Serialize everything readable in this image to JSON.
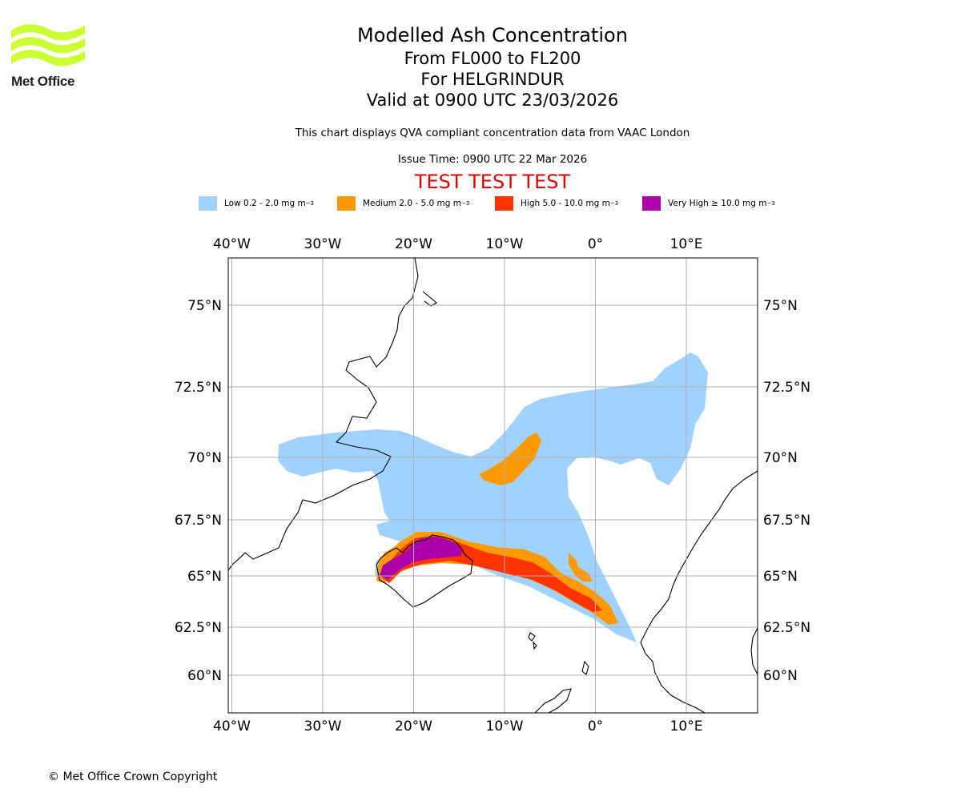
{
  "logo": {
    "text": "Met Office"
  },
  "title": {
    "main": "Modelled Ash Concentration",
    "levels": "From FL000 to FL200",
    "volcano": "For HELGRINDUR",
    "valid": "Valid at 0900 UTC 23/03/2026"
  },
  "subtitle": "This chart displays QVA compliant concentration data from VAAC London",
  "issue_time": "Issue Time: 0900 UTC 22 Mar 2026",
  "test_banner": "TEST TEST TEST",
  "legend": [
    {
      "label": "Low 0.2 - 2.0 mg m",
      "sup": "−3",
      "color": "#a0d2ff"
    },
    {
      "label": "Medium 2.0 - 5.0 mg m",
      "sup": "−3",
      "color": "#ff9900"
    },
    {
      "label": "High 5.0 - 10.0 mg m",
      "sup": "−3",
      "color": "#ff3300"
    },
    {
      "label": "Very High  ≥  10.0 mg m",
      "sup": "−3",
      "color": "#aa00aa"
    }
  ],
  "map": {
    "lon_labels": [
      "40°W",
      "30°W",
      "20°W",
      "10°W",
      "0°",
      "10°E"
    ],
    "lon_values": [
      -40,
      -30,
      -20,
      -10,
      0,
      10
    ],
    "lat_labels": [
      "75°N",
      "72.5°N",
      "70°N",
      "67.5°N",
      "65°N",
      "62.5°N",
      "60°N"
    ],
    "lat_values": [
      75,
      72.5,
      70,
      67.5,
      65,
      62.5,
      60
    ]
  },
  "copyright": "© Met Office Crown Copyright"
}
